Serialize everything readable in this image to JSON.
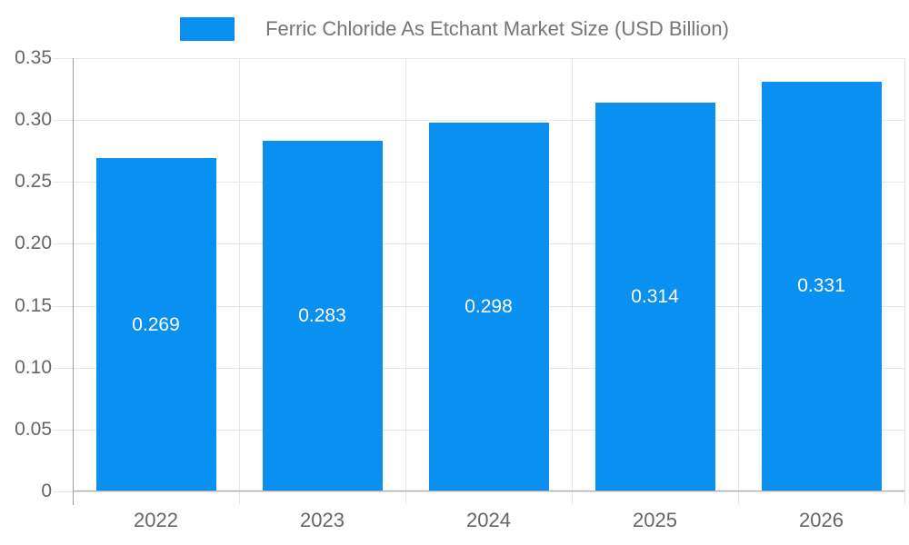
{
  "chart_data": {
    "type": "bar",
    "title": "Ferric Chloride As Etchant Market Size (USD Billion)",
    "categories": [
      "2022",
      "2023",
      "2024",
      "2025",
      "2026"
    ],
    "values": [
      0.269,
      0.283,
      0.298,
      0.314,
      0.331
    ],
    "value_labels": [
      "0.269",
      "0.283",
      "0.298",
      "0.314",
      "0.331"
    ],
    "y_tick_labels": [
      "0.35",
      "0.30",
      "0.25",
      "0.20",
      "0.15",
      "0.10",
      "0.05",
      "0"
    ],
    "ylim": [
      0,
      0.35
    ],
    "xlabel": "",
    "ylabel": "",
    "grid": true,
    "legend_position": "top",
    "colors": {
      "bar": "#0a90f0",
      "gridline": "#e6e6e6",
      "baseline": "#a8a8a8",
      "y_axis_line": "#9b9b9b",
      "axis_text": "#666666",
      "title_text": "#757575",
      "bar_label_text": "#ffffff",
      "background": "#ffffff"
    }
  }
}
